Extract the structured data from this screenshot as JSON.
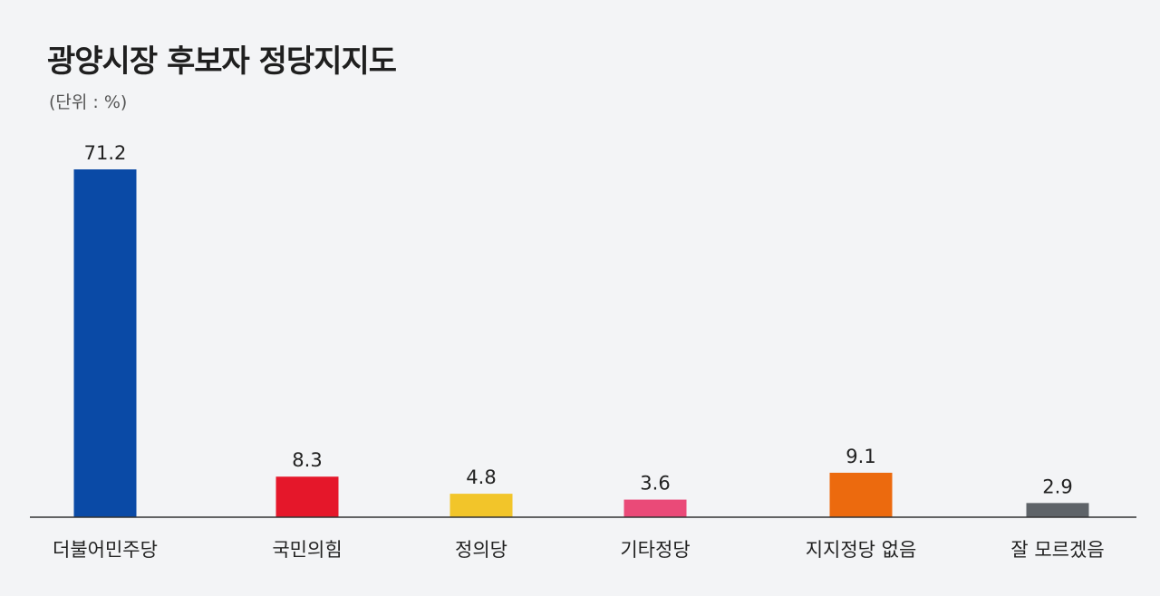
{
  "header": {
    "title": "광양시장 후보자 정당지지도",
    "unit": "(단위 : %)"
  },
  "chart_data": {
    "type": "bar",
    "title": "광양시장 후보자 정당지지도",
    "subtitle": "(단위 : %)",
    "xlabel": "",
    "ylabel": "",
    "ylim": [
      0,
      71.2
    ],
    "grid": false,
    "categories": [
      "더불어민주당",
      "국민의힘",
      "정의당",
      "기타정당",
      "지지정당 없음",
      "잘 모르겠음"
    ],
    "values": [
      71.2,
      8.3,
      4.8,
      3.6,
      9.1,
      2.9
    ],
    "value_labels": [
      "71.2",
      "8.3",
      "4.8",
      "3.6",
      "9.1",
      "2.9"
    ],
    "colors": [
      "#0a4aa6",
      "#e5172a",
      "#f2c52a",
      "#ea4a78",
      "#ec6a0e",
      "#5e6368"
    ]
  }
}
